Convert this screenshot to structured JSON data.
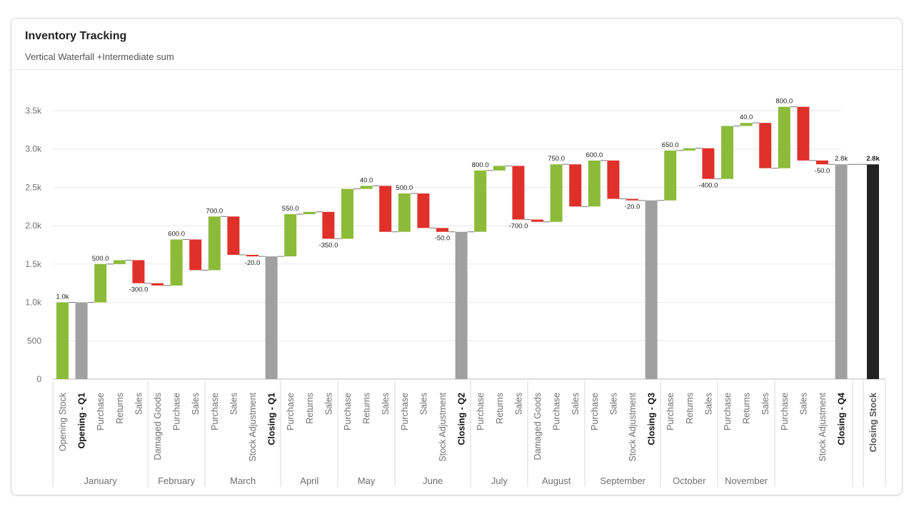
{
  "card": {
    "title": "Inventory Tracking",
    "subtitle": "Vertical Waterfall +Intermediate sum"
  },
  "colors": {
    "increase": "#8cbb3a",
    "decrease": "#e0302a",
    "subtotal": "#a0a0a0",
    "total": "#222222",
    "grid": "#e8e8e8",
    "axis_text": "#707070",
    "label_text": "#222222"
  },
  "chart_data": {
    "type": "bar",
    "subtype": "waterfall",
    "ylim": [
      0,
      3500
    ],
    "yticks": [
      0,
      500,
      1000,
      1500,
      2000,
      2500,
      3000,
      3500
    ],
    "ytick_labels": [
      "0",
      "500",
      "1.0k",
      "1.5k",
      "2.0k",
      "2.5k",
      "3.0k",
      "3.5k"
    ],
    "grid": true,
    "bars": [
      {
        "category": "Opening Stock",
        "kind": "increase",
        "start": 0,
        "end": 1000,
        "label": "1.0k",
        "bold": false
      },
      {
        "category": "Opening - Q1",
        "kind": "subtotal",
        "start": 0,
        "end": 1000,
        "label": "",
        "bold": true
      },
      {
        "category": "Purchase",
        "kind": "increase",
        "start": 1000,
        "end": 1500,
        "label": "500.0",
        "bold": false
      },
      {
        "category": "Returns",
        "kind": "increase",
        "start": 1500,
        "end": 1550,
        "label": "",
        "bold": false
      },
      {
        "category": "Sales",
        "kind": "decrease",
        "start": 1550,
        "end": 1250,
        "label": "-300.0",
        "bold": false
      },
      {
        "category": "Damaged Goods",
        "kind": "decrease",
        "start": 1250,
        "end": 1220,
        "label": "",
        "bold": false
      },
      {
        "category": "Purchase",
        "kind": "increase",
        "start": 1220,
        "end": 1820,
        "label": "600.0",
        "bold": false
      },
      {
        "category": "Sales",
        "kind": "decrease",
        "start": 1820,
        "end": 1420,
        "label": "",
        "bold": false
      },
      {
        "category": "Purchase",
        "kind": "increase",
        "start": 1420,
        "end": 2120,
        "label": "700.0",
        "bold": false
      },
      {
        "category": "Sales",
        "kind": "decrease",
        "start": 2120,
        "end": 1620,
        "label": "",
        "bold": false
      },
      {
        "category": "Stock Adjustment",
        "kind": "decrease",
        "start": 1620,
        "end": 1600,
        "label": "-20.0",
        "bold": false
      },
      {
        "category": "Closing - Q1",
        "kind": "subtotal",
        "start": 0,
        "end": 1600,
        "label": "",
        "bold": true
      },
      {
        "category": "Purchase",
        "kind": "increase",
        "start": 1600,
        "end": 2150,
        "label": "550.0",
        "bold": false
      },
      {
        "category": "Returns",
        "kind": "increase",
        "start": 2150,
        "end": 2180,
        "label": "",
        "bold": false
      },
      {
        "category": "Sales",
        "kind": "decrease",
        "start": 2180,
        "end": 1830,
        "label": "-350.0",
        "bold": false
      },
      {
        "category": "Purchase",
        "kind": "increase",
        "start": 1830,
        "end": 2480,
        "label": "",
        "bold": false
      },
      {
        "category": "Returns",
        "kind": "increase",
        "start": 2480,
        "end": 2520,
        "label": "40.0",
        "bold": false
      },
      {
        "category": "Sales",
        "kind": "decrease",
        "start": 2520,
        "end": 1920,
        "label": "",
        "bold": false
      },
      {
        "category": "Purchase",
        "kind": "increase",
        "start": 1920,
        "end": 2420,
        "label": "500.0",
        "bold": false
      },
      {
        "category": "Sales",
        "kind": "decrease",
        "start": 2420,
        "end": 1970,
        "label": "",
        "bold": false
      },
      {
        "category": "Stock Adjustment",
        "kind": "decrease",
        "start": 1970,
        "end": 1920,
        "label": "-50.0",
        "bold": false
      },
      {
        "category": "Closing - Q2",
        "kind": "subtotal",
        "start": 0,
        "end": 1920,
        "label": "",
        "bold": true
      },
      {
        "category": "Purchase",
        "kind": "increase",
        "start": 1920,
        "end": 2720,
        "label": "800.0",
        "bold": false
      },
      {
        "category": "Returns",
        "kind": "increase",
        "start": 2720,
        "end": 2780,
        "label": "",
        "bold": false
      },
      {
        "category": "Sales",
        "kind": "decrease",
        "start": 2780,
        "end": 2080,
        "label": "-700.0",
        "bold": false
      },
      {
        "category": "Damaged Goods",
        "kind": "decrease",
        "start": 2080,
        "end": 2050,
        "label": "",
        "bold": false
      },
      {
        "category": "Purchase",
        "kind": "increase",
        "start": 2050,
        "end": 2800,
        "label": "750.0",
        "bold": false
      },
      {
        "category": "Sales",
        "kind": "decrease",
        "start": 2800,
        "end": 2250,
        "label": "",
        "bold": false
      },
      {
        "category": "Purchase",
        "kind": "increase",
        "start": 2250,
        "end": 2850,
        "label": "600.0",
        "bold": false
      },
      {
        "category": "Sales",
        "kind": "decrease",
        "start": 2850,
        "end": 2350,
        "label": "",
        "bold": false
      },
      {
        "category": "Stock Adjustment",
        "kind": "decrease",
        "start": 2350,
        "end": 2330,
        "label": "-20.0",
        "bold": false
      },
      {
        "category": "Closing - Q3",
        "kind": "subtotal",
        "start": 0,
        "end": 2330,
        "label": "",
        "bold": true
      },
      {
        "category": "Purchase",
        "kind": "increase",
        "start": 2330,
        "end": 2980,
        "label": "650.0",
        "bold": false
      },
      {
        "category": "Returns",
        "kind": "increase",
        "start": 2980,
        "end": 3010,
        "label": "",
        "bold": false
      },
      {
        "category": "Sales",
        "kind": "decrease",
        "start": 3010,
        "end": 2610,
        "label": "-400.0",
        "bold": false
      },
      {
        "category": "Purchase",
        "kind": "increase",
        "start": 2610,
        "end": 3300,
        "label": "",
        "bold": false
      },
      {
        "category": "Returns",
        "kind": "increase",
        "start": 3300,
        "end": 3340,
        "label": "40.0",
        "bold": false
      },
      {
        "category": "Sales",
        "kind": "decrease",
        "start": 3340,
        "end": 2750,
        "label": "",
        "bold": false
      },
      {
        "category": "Purchase",
        "kind": "increase",
        "start": 2750,
        "end": 3550,
        "label": "800.0",
        "bold": false
      },
      {
        "category": "Sales",
        "kind": "decrease",
        "start": 3550,
        "end": 2850,
        "label": "",
        "bold": false
      },
      {
        "category": "Stock Adjustment",
        "kind": "decrease",
        "start": 2850,
        "end": 2800,
        "label": "-50.0",
        "bold": false
      },
      {
        "category": "Closing - Q4",
        "kind": "subtotal",
        "start": 0,
        "end": 2800,
        "label": "2.8k",
        "bold": true
      },
      {
        "category": "Closing Stock",
        "kind": "total",
        "start": 0,
        "end": 2800,
        "label": "2.8k",
        "bold": true
      }
    ],
    "groups": [
      {
        "name": "January",
        "first": 0,
        "last": 4
      },
      {
        "name": "February",
        "first": 5,
        "last": 7
      },
      {
        "name": "March",
        "first": 8,
        "last": 11
      },
      {
        "name": "April",
        "first": 12,
        "last": 14
      },
      {
        "name": "May",
        "first": 15,
        "last": 17
      },
      {
        "name": "June",
        "first": 18,
        "last": 21
      },
      {
        "name": "July",
        "first": 22,
        "last": 24
      },
      {
        "name": "August",
        "first": 25,
        "last": 27
      },
      {
        "name": "September",
        "first": 28,
        "last": 31
      },
      {
        "name": "October",
        "first": 32,
        "last": 34
      },
      {
        "name": "November",
        "first": 35,
        "last": 37
      },
      {
        "name": "",
        "first": 38,
        "last": 41
      },
      {
        "name": "",
        "first": 42,
        "last": 42
      }
    ]
  }
}
